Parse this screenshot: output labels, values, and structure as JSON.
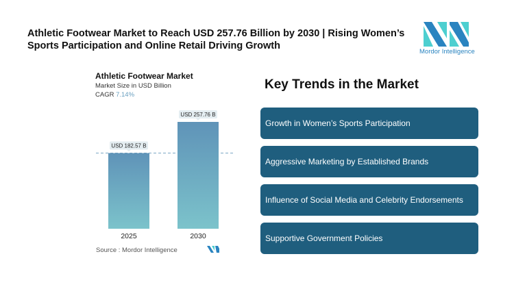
{
  "header": {
    "title": "Athletic Footwear Market to Reach USD 257.76 Billion by 2030 | Rising Women’s Sports Participation and Online Retail Driving Growth",
    "logo_text": "Mordor Intelligence"
  },
  "chart_data": {
    "type": "bar",
    "title": "Athletic Footwear Market",
    "subtitle": "Market Size in USD Billion",
    "cagr_label": "CAGR",
    "cagr_value": "7.14%",
    "categories": [
      "2025",
      "2030"
    ],
    "values": [
      182.57,
      257.76
    ],
    "data_labels": [
      "USD 182.57 B",
      "USD 257.76 B"
    ],
    "ylim": [
      0,
      257.76
    ],
    "colors": {
      "top": "#5f93b8",
      "bottom": "#7cc3cb"
    },
    "source": "Source :  Mordor Intelligence"
  },
  "trends": {
    "title": "Key Trends in the Market",
    "items": [
      "Growth in Women’s Sports Participation",
      "Aggressive Marketing by Established Brands",
      "Influence of Social Media and Celebrity Endorsements",
      "Supportive Government Policies"
    ],
    "color": "#1f5e7e"
  }
}
